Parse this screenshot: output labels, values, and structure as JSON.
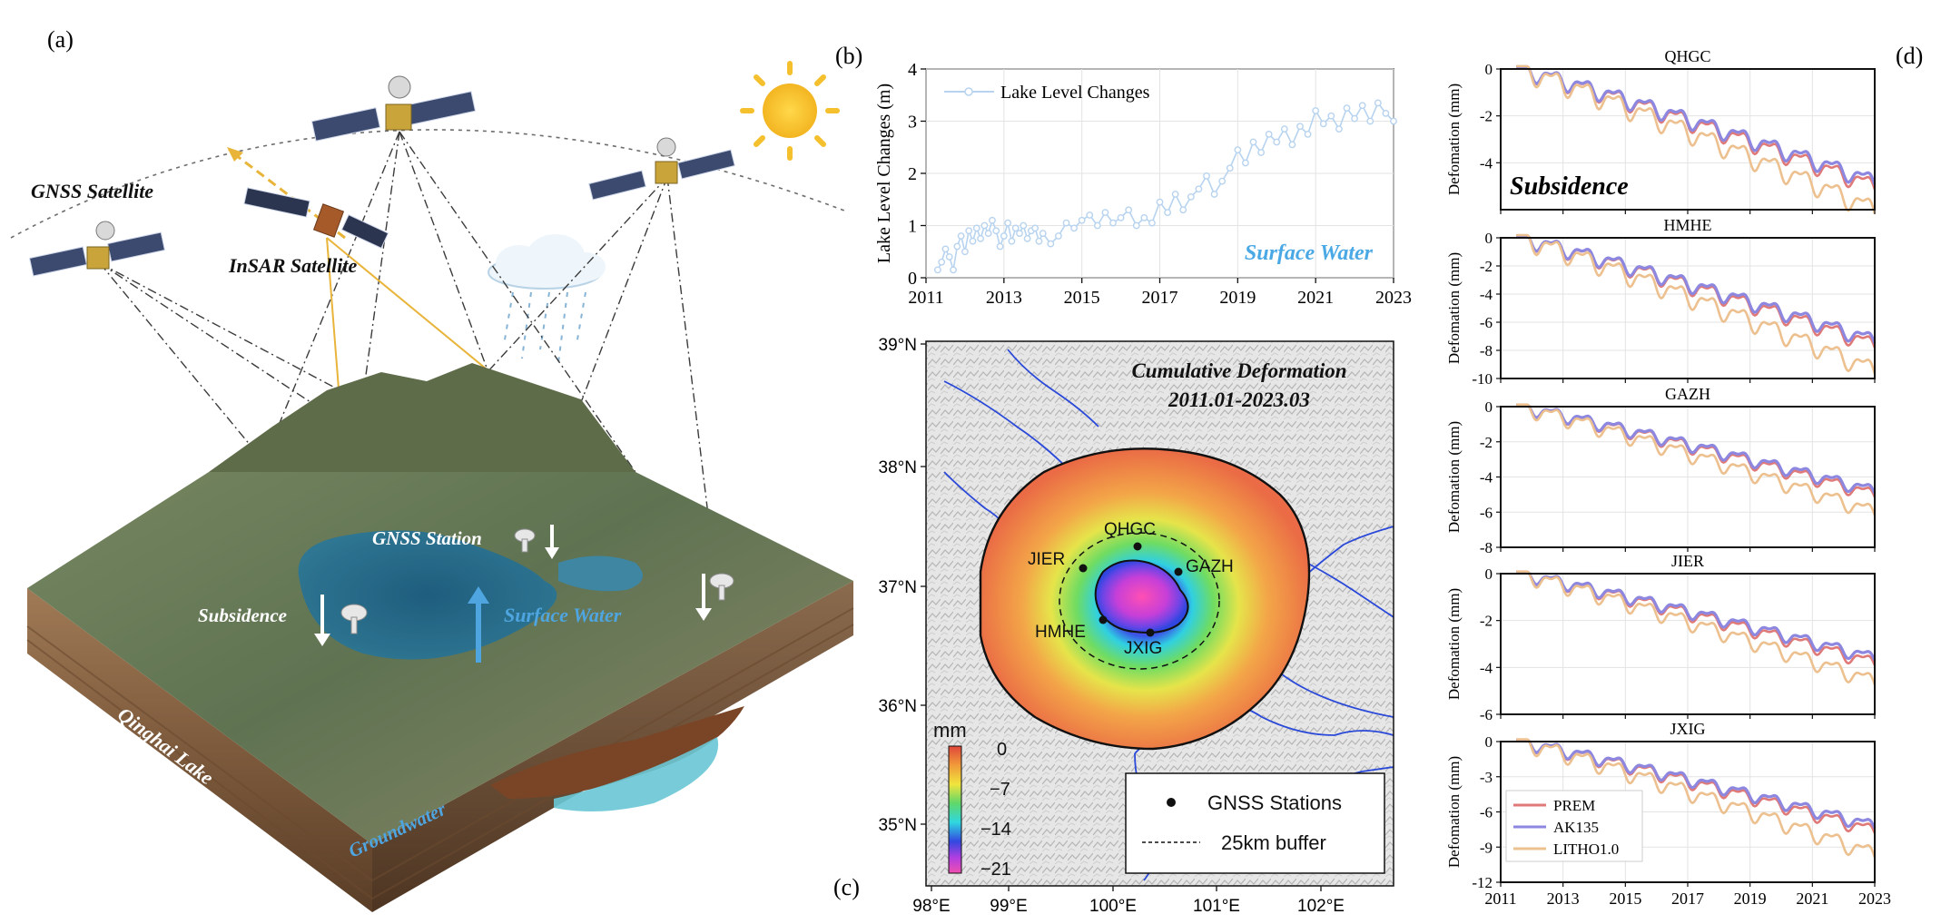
{
  "panels": {
    "a": {
      "label": "(a)",
      "texts": {
        "gnss_satellite": "GNSS Satellite",
        "insar_satellite": "InSAR Satellite",
        "gnss_station": "GNSS Station",
        "subsidence": "Subsidence",
        "surface_water": "Surface Water",
        "qinghai_lake": "Qinghai Lake",
        "groundwater": "Groundwater"
      }
    },
    "b": {
      "label": "(b)"
    },
    "c": {
      "label": "(c)",
      "title_line1": "Cumulative Deformation",
      "title_line2": "2011.01-2023.03",
      "colorbar_unit": "mm",
      "colorbar_ticks": [
        "0",
        "−7",
        "−14",
        "−21"
      ],
      "lat_ticks": [
        "39°N",
        "38°N",
        "37°N",
        "36°N",
        "35°N"
      ],
      "lon_ticks": [
        "98°E",
        "99°E",
        "100°E",
        "101°E",
        "102°E"
      ],
      "stations": [
        "QHGC",
        "JIER",
        "GAZH",
        "HMHE",
        "JXIG"
      ],
      "legend": {
        "stations": "GNSS Stations",
        "buffer": "25km buffer"
      }
    },
    "d": {
      "label": "(d)",
      "annotation": "Subsidence",
      "ylabel": "Defomation (mm)",
      "legend": [
        "PREM",
        "AK135",
        "LITHO1.0"
      ],
      "colors": {
        "PREM": "#e07a78",
        "AK135": "#8d87e0",
        "LITHO1.0": "#edc08f"
      }
    }
  },
  "chart_data": [
    {
      "type": "line",
      "panel": "b",
      "ylabel": "Lake Level Changes (m)",
      "xlabel": "",
      "title": "",
      "annotation": "Surface Water",
      "x_ticks": [
        "2011",
        "2013",
        "2015",
        "2017",
        "2019",
        "2021",
        "2023"
      ],
      "y_ticks": [
        "0",
        "1",
        "2",
        "3",
        "4"
      ],
      "xlim": [
        2011,
        2023
      ],
      "ylim": [
        0,
        4
      ],
      "series": [
        {
          "name": "Lake Level Changes",
          "color": "#b7d3ef",
          "x": [
            2011.3,
            2011.4,
            2011.5,
            2011.6,
            2011.7,
            2011.8,
            2011.9,
            2012.0,
            2012.1,
            2012.2,
            2012.3,
            2012.4,
            2012.5,
            2012.6,
            2012.7,
            2012.8,
            2012.9,
            2013.0,
            2013.1,
            2013.2,
            2013.3,
            2013.4,
            2013.5,
            2013.6,
            2013.7,
            2013.8,
            2013.9,
            2014.0,
            2014.2,
            2014.4,
            2014.6,
            2014.8,
            2015.0,
            2015.2,
            2015.4,
            2015.6,
            2015.8,
            2016.0,
            2016.2,
            2016.4,
            2016.6,
            2016.8,
            2017.0,
            2017.2,
            2017.4,
            2017.6,
            2017.8,
            2018.0,
            2018.2,
            2018.4,
            2018.6,
            2018.8,
            2019.0,
            2019.2,
            2019.4,
            2019.6,
            2019.8,
            2020.0,
            2020.2,
            2020.4,
            2020.6,
            2020.8,
            2021.0,
            2021.2,
            2021.4,
            2021.6,
            2021.8,
            2022.0,
            2022.2,
            2022.4,
            2022.6,
            2022.8,
            2023.0
          ],
          "y": [
            0.15,
            0.3,
            0.55,
            0.4,
            0.15,
            0.6,
            0.8,
            0.5,
            0.9,
            0.7,
            0.95,
            0.75,
            1.0,
            0.85,
            1.1,
            0.9,
            0.6,
            0.8,
            1.05,
            0.7,
            0.95,
            0.85,
            1.0,
            0.75,
            0.9,
            0.95,
            0.7,
            0.85,
            0.65,
            0.8,
            1.05,
            0.95,
            1.1,
            1.2,
            1.0,
            1.25,
            1.05,
            1.15,
            1.3,
            1.0,
            1.15,
            1.05,
            1.45,
            1.25,
            1.6,
            1.3,
            1.55,
            1.7,
            1.95,
            1.6,
            1.85,
            2.1,
            2.45,
            2.2,
            2.6,
            2.4,
            2.75,
            2.6,
            2.85,
            2.55,
            2.9,
            2.75,
            3.2,
            2.95,
            3.1,
            2.85,
            3.25,
            3.05,
            3.3,
            3.0,
            3.35,
            3.15,
            3.0
          ]
        }
      ]
    },
    {
      "type": "line",
      "panel": "d",
      "stations": [
        {
          "name": "QHGC",
          "ylim": [
            -6,
            0
          ],
          "y_ticks": [
            "0",
            "-2",
            "-4"
          ],
          "min": {
            "PREM": -5.0,
            "AK135": -4.8,
            "LITHO1.0": -6.0
          }
        },
        {
          "name": "HMHE",
          "ylim": [
            -10,
            0
          ],
          "y_ticks": [
            "0",
            "-2",
            "-4",
            "-6",
            "-8",
            "-10"
          ],
          "min": {
            "PREM": -7.6,
            "AK135": -7.3,
            "LITHO1.0": -9.4
          }
        },
        {
          "name": "GAZH",
          "ylim": [
            -8,
            0
          ],
          "y_ticks": [
            "0",
            "-2",
            "-4",
            "-6",
            "-8"
          ],
          "min": {
            "PREM": -5.0,
            "AK135": -4.8,
            "LITHO1.0": -6.0
          }
        },
        {
          "name": "JIER",
          "ylim": [
            -6,
            0
          ],
          "y_ticks": [
            "0",
            "-2",
            "-4",
            "-6"
          ],
          "min": {
            "PREM": -3.8,
            "AK135": -3.6,
            "LITHO1.0": -4.6
          }
        },
        {
          "name": "JXIG",
          "ylim": [
            -12,
            0
          ],
          "y_ticks": [
            "0",
            "-3",
            "-6",
            "-9",
            "-12"
          ],
          "min": {
            "PREM": -7.6,
            "AK135": -7.2,
            "LITHO1.0": -9.6
          }
        }
      ],
      "x_ticks": [
        "2011",
        "2013",
        "2015",
        "2017",
        "2019",
        "2021",
        "2023"
      ],
      "xlim": [
        2011,
        2023
      ],
      "series_names": [
        "PREM",
        "AK135",
        "LITHO1.0"
      ]
    }
  ]
}
